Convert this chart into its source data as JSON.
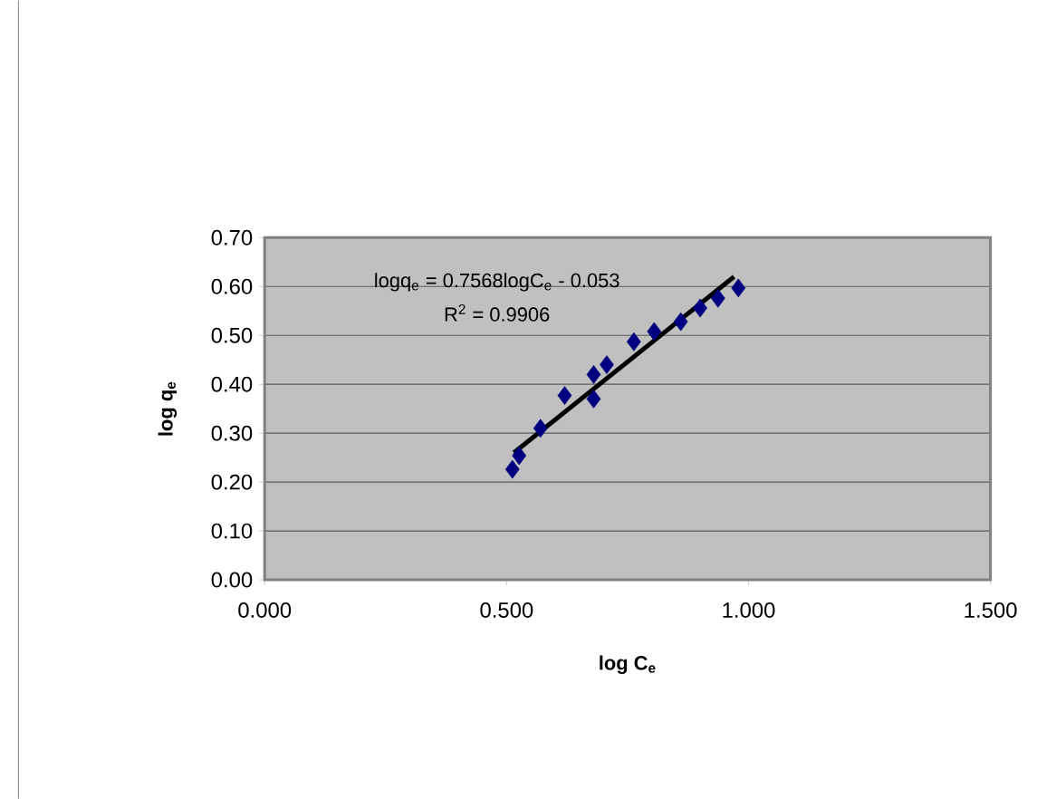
{
  "chart_data": {
    "type": "scatter",
    "xlabel": "**log C$_{e}$**",
    "ylabel": "**log q$_{e}$**",
    "series": [
      {
        "color": "#000080",
        "marker": "diamond",
        "x": [
          0.512,
          0.526,
          0.57,
          0.62,
          0.68,
          0.68,
          0.707,
          0.763,
          0.805,
          0.86,
          0.9,
          0.937,
          0.979
        ],
        "values": [
          0.226,
          0.254,
          0.31,
          0.377,
          0.37,
          0.42,
          0.44,
          0.487,
          0.508,
          0.528,
          0.556,
          0.576,
          0.597
        ]
      },
      {
        "type": "line",
        "color": "#000000",
        "x": [
          0.515,
          0.97
        ],
        "values": [
          0.26,
          0.62
        ]
      }
    ],
    "xlim": [
      0,
      1.5
    ],
    "xticks": [
      {
        "value": 0,
        "label": "0.000"
      },
      {
        "value": 0.5,
        "label": "0.500"
      },
      {
        "value": 1,
        "label": "1.000"
      },
      {
        "value": 1.5,
        "label": "1.500"
      }
    ],
    "ylim": [
      0,
      0.7
    ],
    "yticks": [
      {
        "value": 0,
        "label": "0.00"
      },
      {
        "value": 0.1,
        "label": "0.10"
      },
      {
        "value": 0.2,
        "label": "0.20"
      },
      {
        "value": 0.3,
        "label": "0.30"
      },
      {
        "value": 0.4,
        "label": "0.40"
      },
      {
        "value": 0.5,
        "label": "0.50"
      },
      {
        "value": 0.6,
        "label": "0.60"
      },
      {
        "value": 0.7,
        "label": "0.70"
      }
    ],
    "grid": "y",
    "annotations": [
      "logq$_{e}$ = 0.7568logC$_{e}$ - 0.053",
      "R$^{2}$ = 0.9906"
    ]
  }
}
